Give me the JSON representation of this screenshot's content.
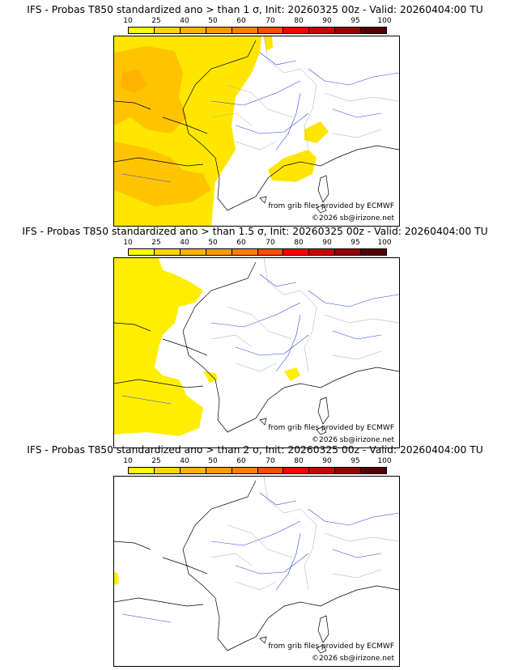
{
  "colorbar": {
    "ticks": [
      "10",
      "25",
      "40",
      "50",
      "60",
      "70",
      "80",
      "90",
      "95",
      "100"
    ],
    "colors": [
      "#ffff00",
      "#ffd700",
      "#ffb200",
      "#ff9a00",
      "#ff7f00",
      "#ff4c00",
      "#ff0000",
      "#cc0000",
      "#990000",
      "#550000"
    ]
  },
  "panels": [
    {
      "title": "IFS - Probas T850  standardized ano > than 1 σ, Init: 20260325 00z - Valid: 20260404:00 TU"
    },
    {
      "title": "IFS - Probas T850  standardized ano > than 1.5 σ, Init: 20260325 00z - Valid: 20260404:00 TU"
    },
    {
      "title": "IFS - Probas T850  standardized ano > than 2 σ, Init: 20260325 00z - Valid: 20260404:00 TU"
    }
  ],
  "credits": {
    "source": "from grib files provided by ECMWF",
    "copyright": "©2026 sb@irizone.net"
  }
}
